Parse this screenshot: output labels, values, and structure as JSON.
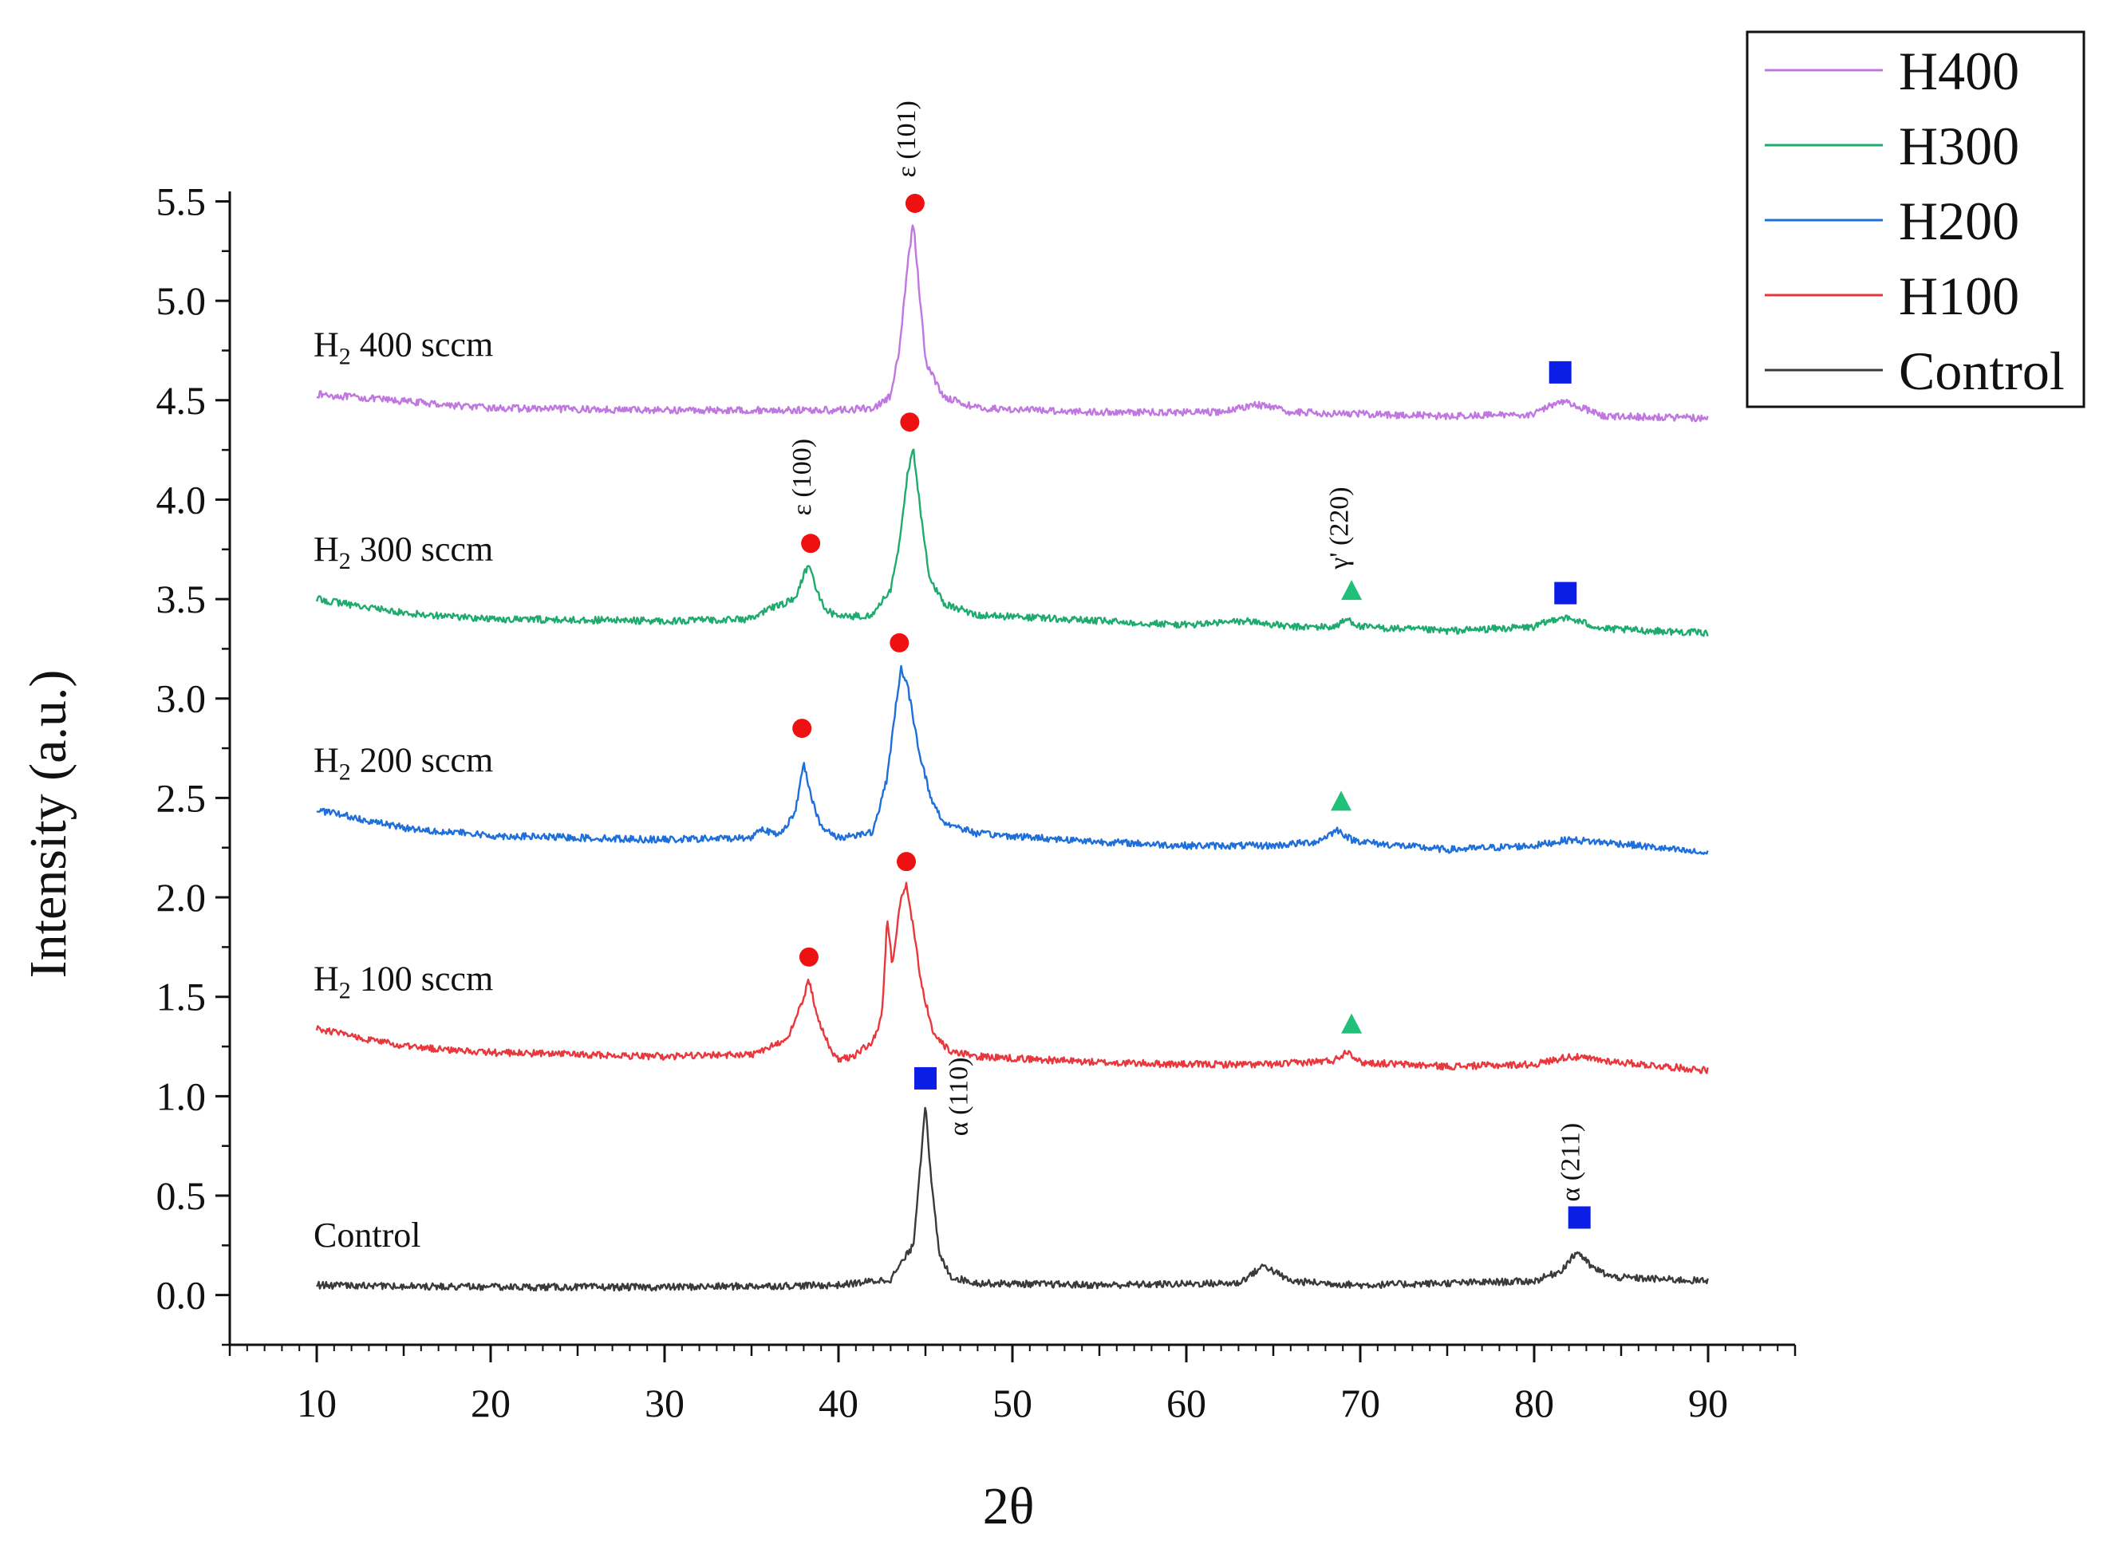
{
  "chart_data": {
    "type": "line",
    "xlabel": "2θ",
    "ylabel": "Intensity (a.u.)",
    "xlim": [
      5,
      95
    ],
    "ylim": [
      -0.25,
      5.55
    ],
    "x_ticks": [
      "10",
      "20",
      "30",
      "40",
      "50",
      "60",
      "70",
      "80",
      "90"
    ],
    "y_ticks": [
      "0.0",
      "0.5",
      "1.0",
      "1.5",
      "2.0",
      "2.5",
      "3.0",
      "3.5",
      "4.0",
      "4.5",
      "5.0",
      "5.5"
    ],
    "legend_position": "top-right",
    "series": [
      {
        "name": "H400",
        "color": "#c077e0",
        "curve_label_main": "H",
        "curve_label_sub": "2",
        "curve_label_rest": " 400 sccm",
        "x": [
          10,
          20,
          30,
          40,
          42,
          43,
          43.5,
          44,
          44.3,
          44.7,
          45,
          46,
          48,
          55,
          62,
          64,
          66,
          75,
          80,
          81.5,
          82.5,
          84,
          90
        ],
        "y": [
          4.53,
          4.46,
          4.45,
          4.45,
          4.46,
          4.52,
          4.75,
          5.2,
          5.4,
          5.0,
          4.7,
          4.52,
          4.46,
          4.44,
          4.44,
          4.48,
          4.44,
          4.42,
          4.43,
          4.5,
          4.47,
          4.42,
          4.41
        ]
      },
      {
        "name": "H300",
        "color": "#1faa6e",
        "curve_label_main": "H",
        "curve_label_sub": "2",
        "curve_label_rest": " 300 sccm",
        "x": [
          10,
          15,
          20,
          30,
          35,
          36,
          37.5,
          38,
          38.3,
          38.7,
          39.2,
          40,
          42,
          43,
          43.5,
          44,
          44.3,
          44.7,
          45.2,
          46,
          48,
          55,
          60,
          63.5,
          66,
          68.5,
          69.3,
          70,
          75,
          80,
          81.5,
          82.5,
          84,
          90
        ],
        "y": [
          3.5,
          3.43,
          3.4,
          3.39,
          3.4,
          3.45,
          3.5,
          3.62,
          3.68,
          3.55,
          3.45,
          3.41,
          3.42,
          3.55,
          3.78,
          4.15,
          4.25,
          3.95,
          3.62,
          3.48,
          3.42,
          3.39,
          3.37,
          3.39,
          3.36,
          3.36,
          3.4,
          3.36,
          3.34,
          3.36,
          3.41,
          3.39,
          3.35,
          3.33
        ]
      },
      {
        "name": "H200",
        "color": "#1e6fd9",
        "curve_label_main": "H",
        "curve_label_sub": "2",
        "curve_label_rest": " 200 sccm",
        "x": [
          10,
          15,
          20,
          30,
          35,
          35.5,
          36.5,
          37.5,
          38,
          38.4,
          39,
          40,
          42,
          42.8,
          43.3,
          43.6,
          44,
          44.6,
          45.3,
          46,
          48,
          55,
          60,
          65,
          67.5,
          68.7,
          69.5,
          71,
          75,
          80,
          82,
          85,
          90
        ],
        "y": [
          2.44,
          2.35,
          2.31,
          2.29,
          2.3,
          2.35,
          2.31,
          2.42,
          2.68,
          2.52,
          2.35,
          2.3,
          2.33,
          2.6,
          2.97,
          3.15,
          3.05,
          2.75,
          2.5,
          2.38,
          2.32,
          2.28,
          2.26,
          2.26,
          2.28,
          2.34,
          2.29,
          2.27,
          2.24,
          2.26,
          2.29,
          2.27,
          2.22
        ]
      },
      {
        "name": "H100",
        "color": "#e8383d",
        "curve_label_main": "H",
        "curve_label_sub": "2",
        "curve_label_rest": " 100 sccm",
        "x": [
          10,
          15,
          20,
          30,
          35,
          37,
          37.8,
          38.3,
          38.8,
          39.5,
          40,
          41,
          42,
          42.5,
          42.8,
          43.1,
          43.3,
          43.6,
          43.9,
          44.3,
          44.8,
          45.5,
          46.5,
          48,
          55,
          60,
          65,
          68.5,
          69.3,
          70,
          75,
          80,
          82,
          85,
          90
        ],
        "y": [
          1.34,
          1.25,
          1.22,
          1.2,
          1.21,
          1.28,
          1.45,
          1.58,
          1.4,
          1.24,
          1.18,
          1.21,
          1.28,
          1.4,
          1.9,
          1.65,
          1.8,
          2.0,
          2.07,
          1.85,
          1.55,
          1.3,
          1.22,
          1.2,
          1.17,
          1.16,
          1.16,
          1.18,
          1.23,
          1.17,
          1.15,
          1.16,
          1.2,
          1.17,
          1.13
        ]
      },
      {
        "name": "Control",
        "color": "#3a3a3a",
        "curve_label_main": "Control",
        "curve_label_sub": "",
        "curve_label_rest": "",
        "x": [
          10,
          20,
          30,
          40,
          43,
          44.3,
          44.8,
          45,
          45.3,
          45.8,
          46.5,
          48,
          55,
          63,
          64.5,
          65,
          66,
          70,
          75,
          80,
          81.5,
          82.5,
          83.3,
          84.5,
          90
        ],
        "y": [
          0.05,
          0.04,
          0.04,
          0.05,
          0.08,
          0.25,
          0.75,
          0.98,
          0.6,
          0.2,
          0.09,
          0.06,
          0.05,
          0.06,
          0.15,
          0.12,
          0.07,
          0.05,
          0.06,
          0.07,
          0.12,
          0.22,
          0.14,
          0.09,
          0.07
        ]
      }
    ],
    "markers": [
      {
        "shape": "circle",
        "color": "#ee1111",
        "x": 44.4,
        "y": 5.49
      },
      {
        "shape": "circle",
        "color": "#ee1111",
        "x": 38.4,
        "y": 3.78
      },
      {
        "shape": "circle",
        "color": "#ee1111",
        "x": 44.1,
        "y": 4.39
      },
      {
        "shape": "circle",
        "color": "#ee1111",
        "x": 37.9,
        "y": 2.85
      },
      {
        "shape": "circle",
        "color": "#ee1111",
        "x": 43.5,
        "y": 3.28
      },
      {
        "shape": "circle",
        "color": "#ee1111",
        "x": 38.3,
        "y": 1.7
      },
      {
        "shape": "circle",
        "color": "#ee1111",
        "x": 43.9,
        "y": 2.18
      },
      {
        "shape": "square",
        "color": "#0a1ee6",
        "x": 81.5,
        "y": 4.64
      },
      {
        "shape": "square",
        "color": "#0a1ee6",
        "x": 81.8,
        "y": 3.53
      },
      {
        "shape": "square",
        "color": "#0a1ee6",
        "x": 45.0,
        "y": 1.09
      },
      {
        "shape": "square",
        "color": "#0a1ee6",
        "x": 82.6,
        "y": 0.39
      },
      {
        "shape": "triangle",
        "color": "#22bf7a",
        "x": 69.5,
        "y": 3.54
      },
      {
        "shape": "triangle",
        "color": "#22bf7a",
        "x": 68.9,
        "y": 2.48
      },
      {
        "shape": "triangle",
        "color": "#22bf7a",
        "x": 69.5,
        "y": 1.36
      }
    ],
    "annotations": [
      {
        "text": "ε (101)",
        "x": 44.4,
        "y": 5.62
      },
      {
        "text": "ε (100)",
        "x": 38.4,
        "y": 3.92
      },
      {
        "text": "γ' (220)",
        "x": 69.3,
        "y": 3.65
      },
      {
        "text": "α (110)",
        "x": 47.4,
        "y": 0.8
      },
      {
        "text": "α (211)",
        "x": 82.6,
        "y": 0.47
      }
    ]
  }
}
